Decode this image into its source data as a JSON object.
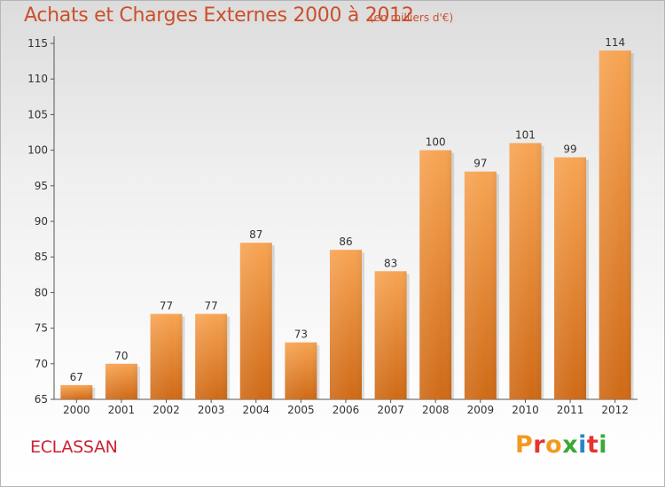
{
  "chart_data": {
    "type": "bar",
    "title": "Achats et Charges Externes 2000 à 2012",
    "subtitle": "(en milliers d'€)",
    "categories": [
      "2000",
      "2001",
      "2002",
      "2003",
      "2004",
      "2005",
      "2006",
      "2007",
      "2008",
      "2009",
      "2010",
      "2011",
      "2012"
    ],
    "values": [
      67,
      70,
      77,
      77,
      87,
      73,
      86,
      83,
      100,
      97,
      101,
      99,
      114
    ],
    "ylim": [
      65,
      116
    ],
    "yticks": [
      65,
      70,
      75,
      80,
      85,
      90,
      95,
      100,
      105,
      110,
      115
    ],
    "grid": false,
    "bar_color": "#f0923e"
  },
  "footer": {
    "commune": "ECLASSAN",
    "brand": "Proxiti",
    "brand_colors": [
      "#f29a1f",
      "#e3342f",
      "#f29a1f",
      "#3aa935",
      "#2a86c8",
      "#e3342f",
      "#3aa935"
    ]
  }
}
